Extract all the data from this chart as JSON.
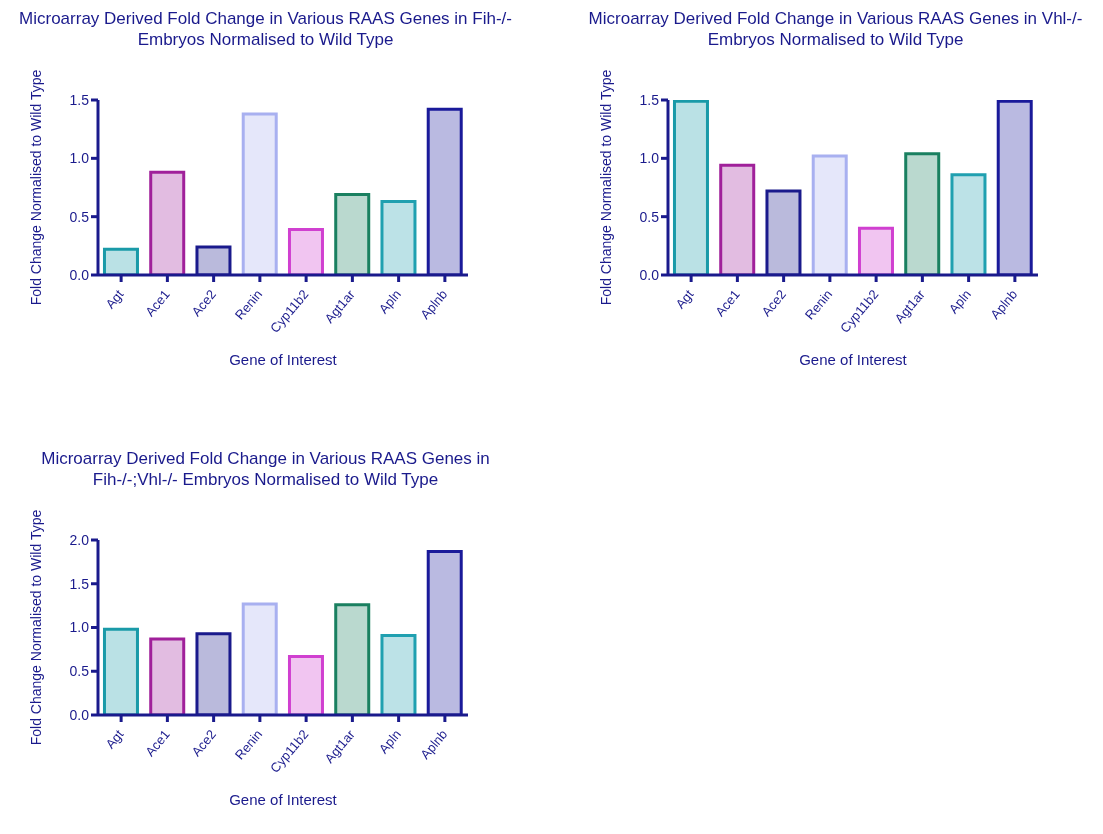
{
  "chart_data": [
    {
      "type": "bar",
      "title": "Microarray Derived Fold Change in Various RAAS Genes in Fih-/- Embryos Normalised to Wild Type",
      "xlabel": "Gene of Interest",
      "ylabel": "Fold Change Normalised to Wild Type",
      "categories": [
        "Agt",
        "Ace1",
        "Ace2",
        "Renin",
        "Cyp11b2",
        "Agt1ar",
        "Apln",
        "Aplnb"
      ],
      "values": [
        0.22,
        0.88,
        0.24,
        1.38,
        0.39,
        0.69,
        0.63,
        1.42
      ],
      "colors": [
        "#1a9aa8",
        "#a0209a",
        "#1a1a8c",
        "#a8b0f0",
        "#d040d0",
        "#1a8060",
        "#20a0b0",
        "#1a1a9a"
      ],
      "ylim": [
        0,
        1.5
      ],
      "yticks": [
        {
          "value": 0,
          "label": "0.0"
        },
        {
          "value": 0.5,
          "label": "0.5"
        },
        {
          "value": 1,
          "label": "1.0"
        },
        {
          "value": 1.5,
          "label": "1.5"
        }
      ],
      "grid": false
    },
    {
      "type": "bar",
      "title": "Microarray Derived Fold Change in Various RAAS Genes in Vhl-/- Embryos Normalised to Wild Type",
      "xlabel": "Gene of Interest",
      "ylabel": "Fold Change Normalised to Wild Type",
      "categories": [
        "Agt",
        "Ace1",
        "Ace2",
        "Renin",
        "Cyp11b2",
        "Agt1ar",
        "Apln",
        "Aplnb"
      ],
      "values": [
        1.49,
        0.94,
        0.72,
        1.02,
        0.4,
        1.04,
        0.86,
        1.49
      ],
      "colors": [
        "#1a9aa8",
        "#a0209a",
        "#1a1a8c",
        "#a8b0f0",
        "#d040d0",
        "#1a8060",
        "#20a0b0",
        "#1a1a9a"
      ],
      "ylim": [
        0,
        1.5
      ],
      "yticks": [
        {
          "value": 0,
          "label": "0.0"
        },
        {
          "value": 0.5,
          "label": "0.5"
        },
        {
          "value": 1,
          "label": "1.0"
        },
        {
          "value": 1.5,
          "label": "1.5"
        }
      ],
      "grid": false
    },
    {
      "type": "bar",
      "title": "Microarray Derived Fold Change in Various RAAS Genes in Fih-/-;Vhl-/- Embryos Normalised to Wild Type",
      "xlabel": "Gene of Interest",
      "ylabel": "Fold Change Normalised to Wild Type",
      "categories": [
        "Agt",
        "Ace1",
        "Ace2",
        "Renin",
        "Cyp11b2",
        "Agt1ar",
        "Apln",
        "Aplnb"
      ],
      "values": [
        0.98,
        0.87,
        0.93,
        1.27,
        0.67,
        1.26,
        0.91,
        1.87
      ],
      "colors": [
        "#1a9aa8",
        "#a0209a",
        "#1a1a8c",
        "#a8b0f0",
        "#d040d0",
        "#1a8060",
        "#20a0b0",
        "#1a1a9a"
      ],
      "ylim": [
        0,
        2
      ],
      "yticks": [
        {
          "value": 0,
          "label": "0.0"
        },
        {
          "value": 0.5,
          "label": "0.5"
        },
        {
          "value": 1,
          "label": "1.0"
        },
        {
          "value": 1.5,
          "label": "1.5"
        },
        {
          "value": 2,
          "label": "2.0"
        }
      ],
      "grid": false
    }
  ]
}
